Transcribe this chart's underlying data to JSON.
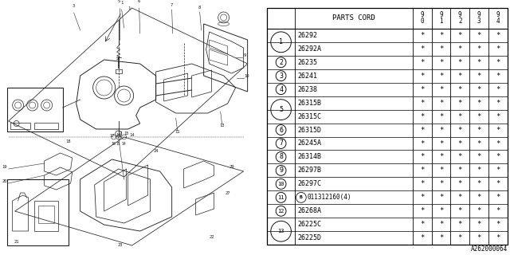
{
  "rows": [
    {
      "num": "1",
      "sub": false,
      "code": "26292",
      "stars": [
        true,
        true,
        true,
        true,
        true
      ]
    },
    {
      "num": "1",
      "sub": true,
      "code": "26292A",
      "stars": [
        true,
        true,
        true,
        true,
        true
      ]
    },
    {
      "num": "2",
      "sub": false,
      "code": "26235",
      "stars": [
        true,
        true,
        true,
        true,
        true
      ]
    },
    {
      "num": "3",
      "sub": false,
      "code": "26241",
      "stars": [
        true,
        true,
        true,
        true,
        true
      ]
    },
    {
      "num": "4",
      "sub": false,
      "code": "26238",
      "stars": [
        true,
        true,
        true,
        true,
        true
      ]
    },
    {
      "num": "5",
      "sub": false,
      "code": "26315B",
      "stars": [
        true,
        true,
        true,
        true,
        true
      ]
    },
    {
      "num": "5",
      "sub": true,
      "code": "26315C",
      "stars": [
        true,
        true,
        true,
        true,
        true
      ]
    },
    {
      "num": "6",
      "sub": false,
      "code": "26315D",
      "stars": [
        true,
        true,
        true,
        true,
        true
      ]
    },
    {
      "num": "7",
      "sub": false,
      "code": "26245A",
      "stars": [
        true,
        true,
        true,
        true,
        true
      ]
    },
    {
      "num": "8",
      "sub": false,
      "code": "26314B",
      "stars": [
        true,
        true,
        true,
        true,
        true
      ]
    },
    {
      "num": "9",
      "sub": false,
      "code": "26297B",
      "stars": [
        true,
        true,
        true,
        true,
        true
      ]
    },
    {
      "num": "10",
      "sub": false,
      "code": "26297C",
      "stars": [
        true,
        true,
        true,
        true,
        true
      ]
    },
    {
      "num": "11",
      "sub": false,
      "code": "B011312160(4)",
      "stars": [
        true,
        true,
        true,
        true,
        true
      ]
    },
    {
      "num": "12",
      "sub": false,
      "code": "26268A",
      "stars": [
        true,
        true,
        true,
        true,
        true
      ]
    },
    {
      "num": "13",
      "sub": false,
      "code": "26225C",
      "stars": [
        true,
        true,
        true,
        true,
        true
      ]
    },
    {
      "num": "13",
      "sub": true,
      "code": "26225D",
      "stars": [
        true,
        true,
        true,
        true,
        true
      ]
    }
  ],
  "footer_code": "A262000064",
  "bg_color": "#ffffff",
  "font_size": 6.0,
  "header_font_size": 6.5
}
